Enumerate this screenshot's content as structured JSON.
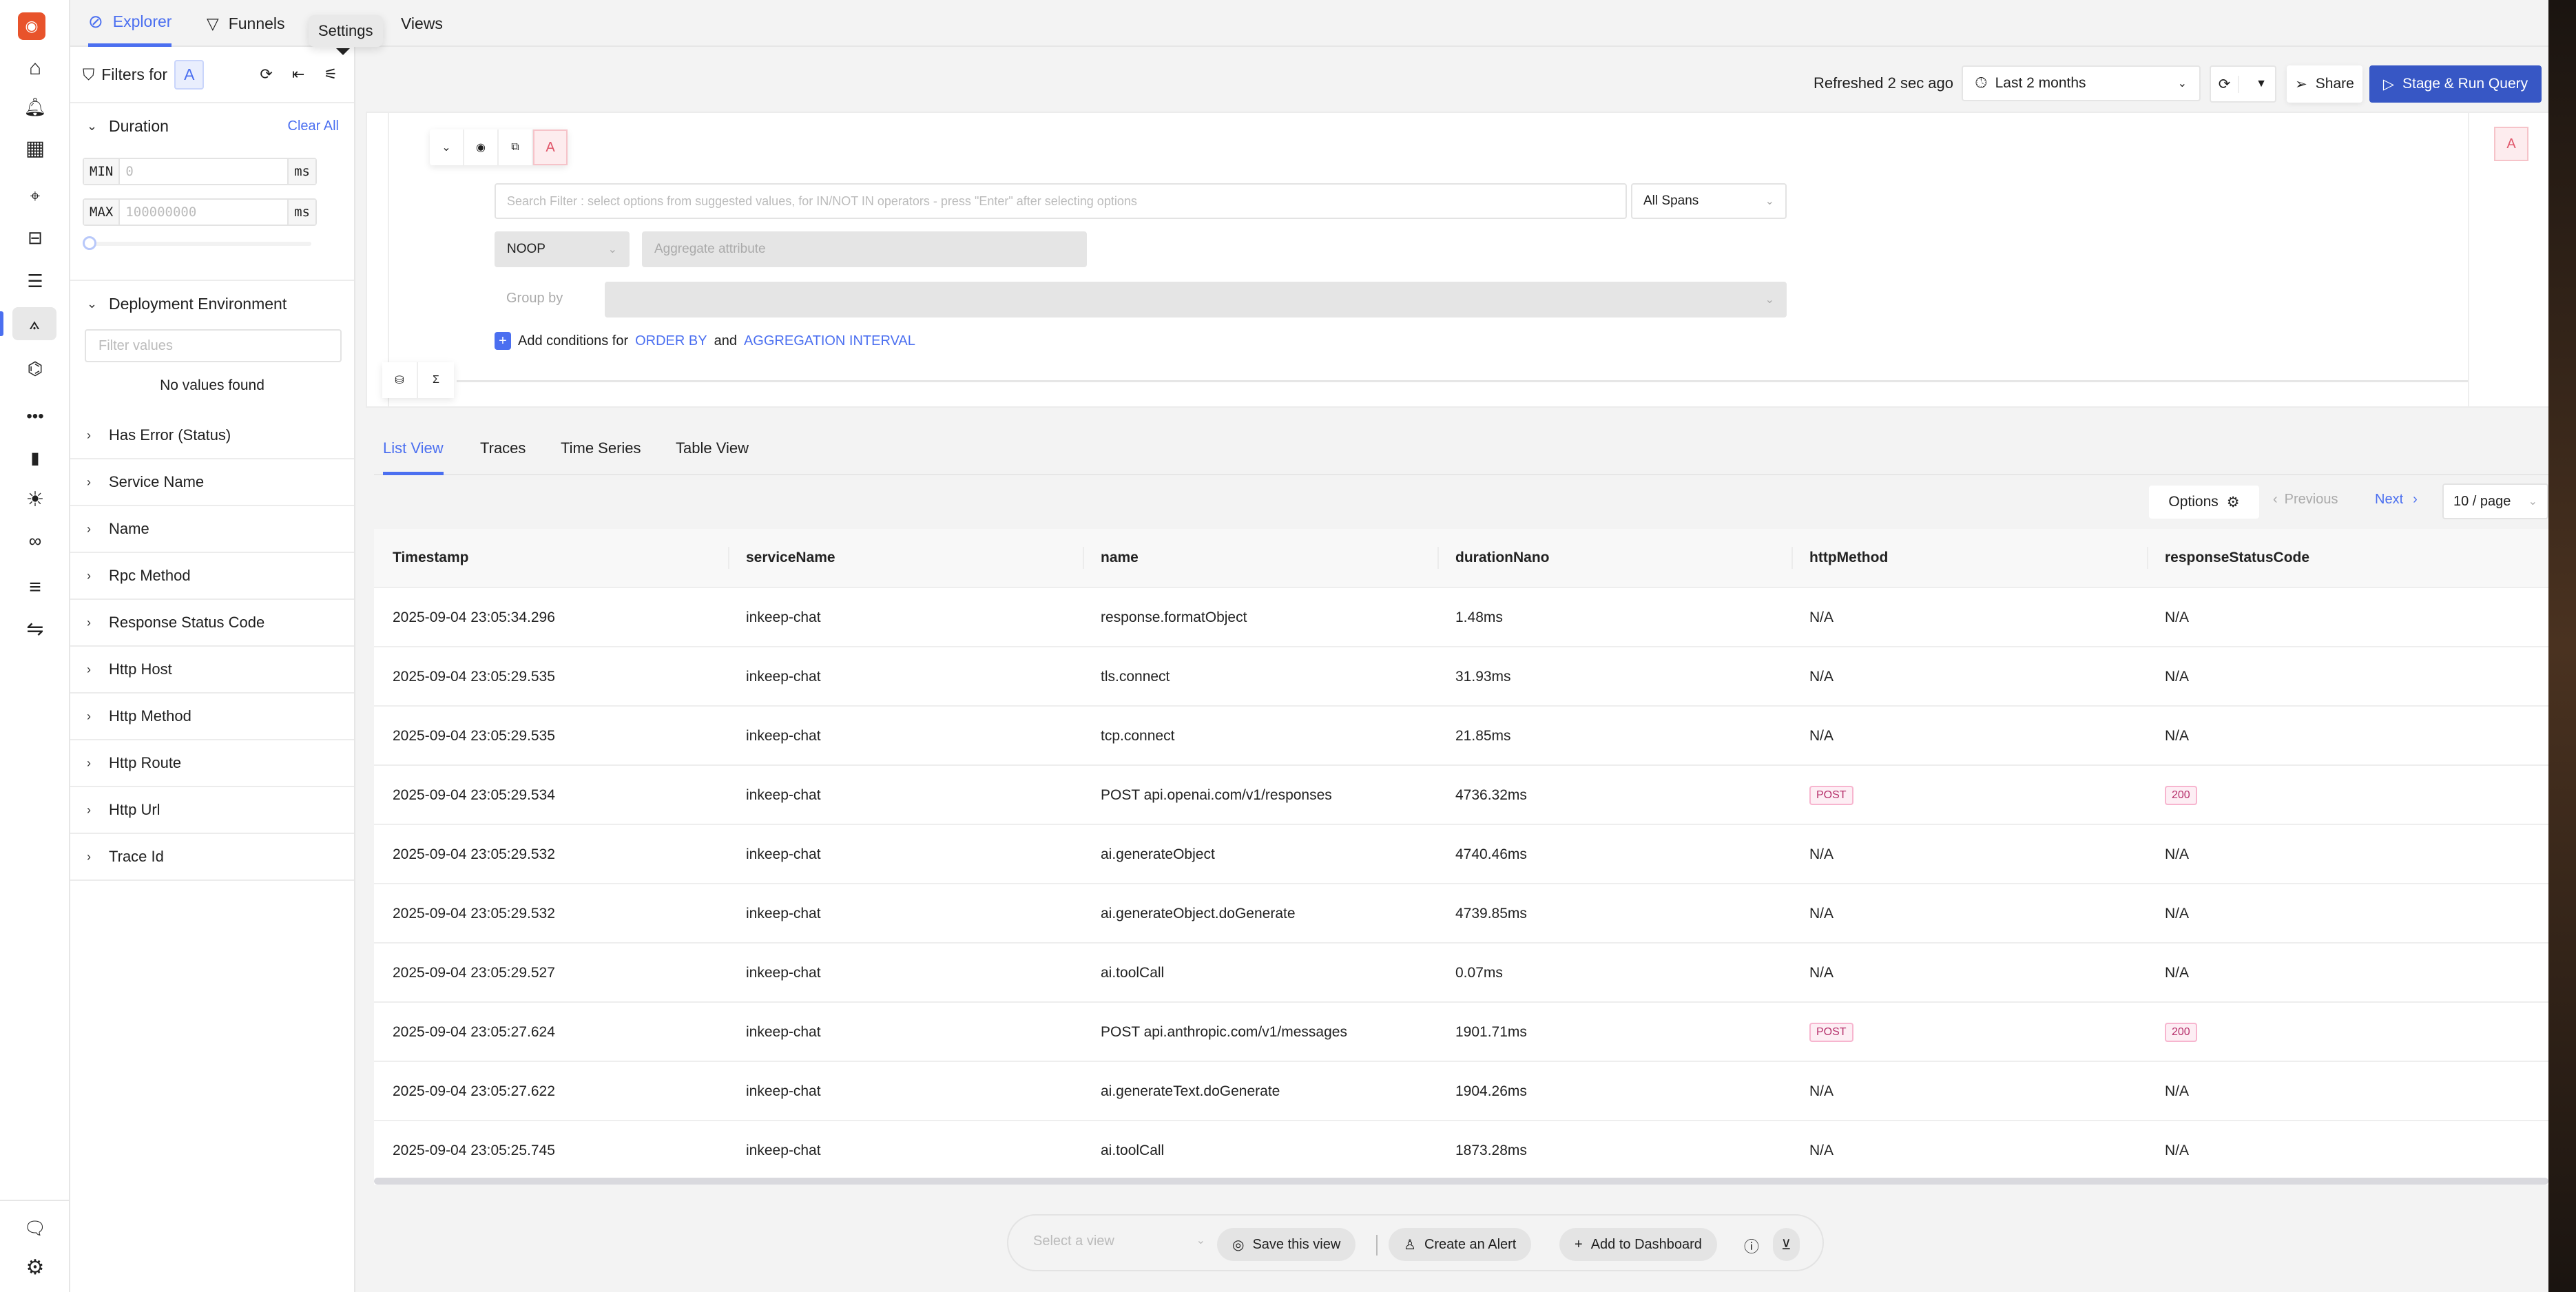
{
  "nav": {
    "icons": [
      "logo-icon",
      "home-icon",
      "alerts-icon",
      "dashboards-icon",
      "ai-cursor-icon",
      "infra-icon",
      "logs-icon",
      "traces-explorer-icon",
      "services-icon",
      "more-icon",
      "metrics-icon",
      "exceptions-icon",
      "explore-icon",
      "pipelines-icon",
      "integrations-icon",
      "feedback-icon",
      "settings-icon"
    ],
    "accent": "#4b6ff0",
    "logo_color": "#e8532b"
  },
  "top_tabs": [
    {
      "label": "Explorer",
      "active": true
    },
    {
      "label": "Funnels"
    },
    {
      "label": "Views"
    }
  ],
  "tooltip": "Settings",
  "filters": {
    "title": "Filters for",
    "query_badge": "A",
    "duration": {
      "label": "Duration",
      "clear": "Clear All",
      "min_label": "MIN",
      "min_placeholder": "0",
      "max_label": "MAX",
      "max_placeholder": "100000000",
      "unit": "ms",
      "slider_value": 0
    },
    "deployment": {
      "label": "Deployment Environment",
      "placeholder": "Filter values",
      "empty": "No values found"
    },
    "items": [
      "Has Error (Status)",
      "Service Name",
      "Name",
      "Rpc Method",
      "Response Status Code",
      "Http Host",
      "Http Method",
      "Http Route",
      "Http Url",
      "Trace Id"
    ]
  },
  "toolbar": {
    "refreshed": "Refreshed 2 sec ago",
    "time_range": "Last 2 months",
    "share": "Share",
    "run": "Stage & Run Query",
    "run_color": "#3757c5"
  },
  "query": {
    "name": "A",
    "search_placeholder": "Search Filter : select options from suggested values, for IN/NOT IN operators - press \"Enter\" after selecting options",
    "spans": "All Spans",
    "aggregate_op": "NOOP",
    "aggregate_placeholder": "Aggregate attribute",
    "group_by": "Group by",
    "add_text": "Add conditions for",
    "order_by": "ORDER BY",
    "and": "and",
    "agg_interval": "AGGREGATION INTERVAL"
  },
  "view_tabs": [
    {
      "label": "List View",
      "active": true
    },
    {
      "label": "Traces"
    },
    {
      "label": "Time Series"
    },
    {
      "label": "Table View"
    }
  ],
  "pagination": {
    "options": "Options",
    "previous": "Previous",
    "next": "Next",
    "page_size": "10 / page"
  },
  "table": {
    "columns": [
      "Timestamp",
      "serviceName",
      "name",
      "durationNano",
      "httpMethod",
      "responseStatusCode"
    ],
    "rows": [
      [
        "2025-09-04 23:05:34.296",
        "inkeep-chat",
        "response.formatObject",
        "1.48ms",
        "N/A",
        "N/A"
      ],
      [
        "2025-09-04 23:05:29.535",
        "inkeep-chat",
        "tls.connect",
        "31.93ms",
        "N/A",
        "N/A"
      ],
      [
        "2025-09-04 23:05:29.535",
        "inkeep-chat",
        "tcp.connect",
        "21.85ms",
        "N/A",
        "N/A"
      ],
      [
        "2025-09-04 23:05:29.534",
        "inkeep-chat",
        "POST api.openai.com/v1/responses",
        "4736.32ms",
        "POST",
        "200"
      ],
      [
        "2025-09-04 23:05:29.532",
        "inkeep-chat",
        "ai.generateObject",
        "4740.46ms",
        "N/A",
        "N/A"
      ],
      [
        "2025-09-04 23:05:29.532",
        "inkeep-chat",
        "ai.generateObject.doGenerate",
        "4739.85ms",
        "N/A",
        "N/A"
      ],
      [
        "2025-09-04 23:05:29.527",
        "inkeep-chat",
        "ai.toolCall",
        "0.07ms",
        "N/A",
        "N/A"
      ],
      [
        "2025-09-04 23:05:27.624",
        "inkeep-chat",
        "POST api.anthropic.com/v1/messages",
        "1901.71ms",
        "POST",
        "200"
      ],
      [
        "2025-09-04 23:05:27.622",
        "inkeep-chat",
        "ai.generateText.doGenerate",
        "1904.26ms",
        "N/A",
        "N/A"
      ],
      [
        "2025-09-04 23:05:25.745",
        "inkeep-chat",
        "ai.toolCall",
        "1873.28ms",
        "N/A",
        "N/A"
      ]
    ]
  },
  "bottom_bar": {
    "select_placeholder": "Select a view",
    "save": "Save this view",
    "alert": "Create an Alert",
    "dashboard": "Add to Dashboard"
  }
}
